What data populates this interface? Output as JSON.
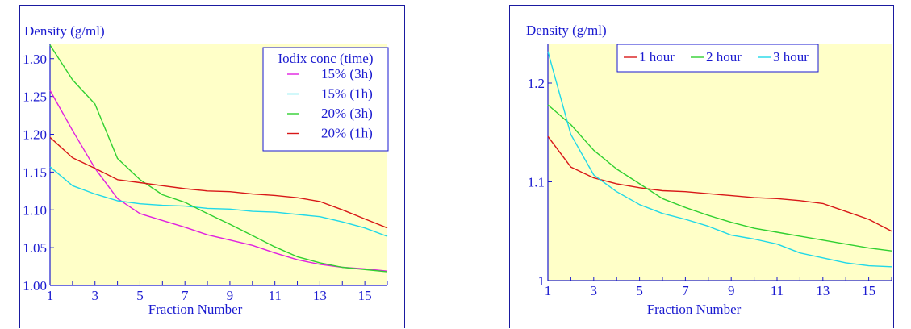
{
  "chart_data": [
    {
      "type": "line",
      "ylabel": "Density (g/ml)",
      "xlabel": "Fraction Number",
      "xlim": [
        1,
        16
      ],
      "ylim": [
        1.0,
        1.32
      ],
      "x_ticks": [
        "1",
        "3",
        "5",
        "7",
        "9",
        "11",
        "13",
        "15"
      ],
      "y_ticks": [
        "1.00",
        "1.05",
        "1.10",
        "1.15",
        "1.20",
        "1.25",
        "1.30"
      ],
      "legend_title": "Iodix conc (time)",
      "legend_placement": "top-right",
      "x": [
        1,
        2,
        3,
        4,
        5,
        6,
        7,
        8,
        9,
        10,
        11,
        12,
        13,
        14,
        15,
        16
      ],
      "series": [
        {
          "name": "15%  (3h)",
          "color": "#e020e0",
          "values": [
            1.258,
            1.205,
            1.155,
            1.115,
            1.095,
            1.086,
            1.077,
            1.067,
            1.06,
            1.053,
            1.043,
            1.034,
            1.028,
            1.024,
            1.022,
            1.019
          ]
        },
        {
          "name": "15%  (1h)",
          "color": "#20d8e8",
          "values": [
            1.157,
            1.132,
            1.121,
            1.112,
            1.108,
            1.106,
            1.105,
            1.102,
            1.101,
            1.098,
            1.097,
            1.094,
            1.091,
            1.084,
            1.076,
            1.065
          ]
        },
        {
          "name": "20%  (3h)",
          "color": "#30d030",
          "values": [
            1.318,
            1.272,
            1.24,
            1.168,
            1.14,
            1.12,
            1.11,
            1.095,
            1.081,
            1.066,
            1.051,
            1.038,
            1.03,
            1.024,
            1.021,
            1.018
          ]
        },
        {
          "name": "20%  (1h)",
          "color": "#d81818",
          "values": [
            1.196,
            1.169,
            1.155,
            1.14,
            1.136,
            1.132,
            1.128,
            1.125,
            1.124,
            1.121,
            1.119,
            1.116,
            1.111,
            1.1,
            1.088,
            1.076
          ]
        }
      ]
    },
    {
      "type": "line",
      "ylabel": "Density (g/ml)",
      "xlabel": "Fraction Number",
      "xlim": [
        1,
        16
      ],
      "ylim": [
        1.0,
        1.24
      ],
      "x_ticks": [
        "1",
        "3",
        "5",
        "7",
        "9",
        "11",
        "13",
        "15"
      ],
      "y_ticks": [
        "1",
        "1.1",
        "1.2"
      ],
      "legend_placement": "top-center",
      "x": [
        1,
        2,
        3,
        4,
        5,
        6,
        7,
        8,
        9,
        10,
        11,
        12,
        13,
        14,
        15,
        16
      ],
      "series": [
        {
          "name": "1 hour",
          "color": "#d81818",
          "values": [
            1.146,
            1.115,
            1.104,
            1.098,
            1.094,
            1.091,
            1.09,
            1.088,
            1.086,
            1.084,
            1.083,
            1.081,
            1.078,
            1.07,
            1.062,
            1.05
          ]
        },
        {
          "name": "2 hour",
          "color": "#30d030",
          "values": [
            1.178,
            1.158,
            1.132,
            1.113,
            1.098,
            1.083,
            1.074,
            1.066,
            1.059,
            1.053,
            1.049,
            1.045,
            1.041,
            1.037,
            1.033,
            1.03
          ]
        },
        {
          "name": "3 hour",
          "color": "#20d8e8",
          "values": [
            1.232,
            1.148,
            1.107,
            1.09,
            1.077,
            1.068,
            1.062,
            1.055,
            1.046,
            1.042,
            1.037,
            1.028,
            1.023,
            1.018,
            1.015,
            1.014
          ]
        }
      ]
    }
  ]
}
